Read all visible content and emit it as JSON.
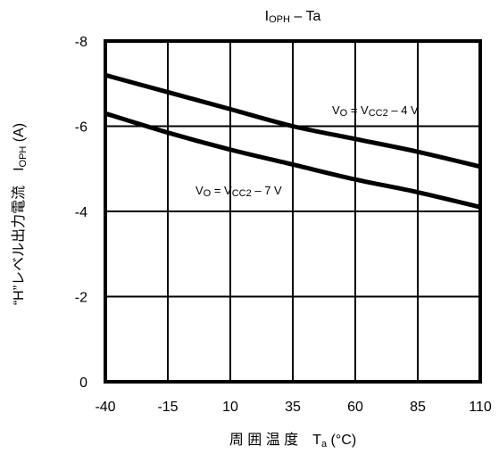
{
  "chart_data": {
    "type": "line",
    "title_main": "I",
    "title_sub": "OPH",
    "title_rest": " – Ta",
    "xlabel_main": "周 囲 温 度　T",
    "xlabel_sub": "a",
    "xlabel_rest": "  (°C)",
    "ylabel_main": "“H”レベル出力電流　I",
    "ylabel_sub": "OPH",
    "ylabel_rest": " (A)",
    "xlim": [
      -40,
      110
    ],
    "ylim": [
      0,
      -8
    ],
    "x_ticks": [
      -40,
      -15,
      10,
      35,
      60,
      85,
      110
    ],
    "x_tick_labels": [
      "-40",
      "-15",
      "10",
      "35",
      "60",
      "85",
      "110"
    ],
    "y_ticks": [
      0,
      -2,
      -4,
      -6,
      -8
    ],
    "y_tick_labels": [
      "0",
      "-2",
      "-4",
      "-6",
      "-8"
    ],
    "grid": true,
    "series": [
      {
        "name": "VO = VCC2 – 4 V",
        "label_parts": [
          "V",
          "O",
          " = V",
          "CC2",
          " – 4 V"
        ],
        "x": [
          -40,
          -15,
          10,
          35,
          60,
          85,
          110
        ],
        "y": [
          -7.2,
          -6.8,
          -6.4,
          -6.0,
          -5.7,
          -5.4,
          -5.05
        ]
      },
      {
        "name": "VO = VCC2 – 7 V",
        "label_parts": [
          "V",
          "O",
          " = V",
          "CC2",
          " – 7 V"
        ],
        "x": [
          -40,
          -15,
          10,
          35,
          60,
          85,
          110
        ],
        "y": [
          -6.3,
          -5.85,
          -5.45,
          -5.1,
          -4.75,
          -4.45,
          -4.1
        ]
      }
    ]
  }
}
